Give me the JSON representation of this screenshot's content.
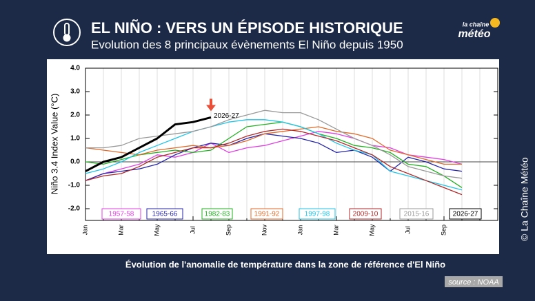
{
  "header": {
    "title": "EL NIÑO : VERS UN ÉPISODE HISTORIQUE",
    "subtitle": "Evolution des 8 principaux évènements El Niño depuis 1950",
    "logo_top": "la chaîne",
    "logo_bottom": "météo"
  },
  "chart_data": {
    "type": "line",
    "y_label": "Niño 3.4 Index Value (°C)",
    "annotation": "2026-27",
    "categories": [
      "Jan",
      null,
      "Mar",
      null,
      "May",
      null,
      "Jul",
      null,
      "Sep",
      null,
      "Nov",
      null,
      "Jan",
      null,
      "Mar",
      null,
      "May",
      null,
      "Jul",
      null,
      "Sep",
      null,
      null,
      null
    ],
    "ylim": [
      -2.5,
      4.0
    ],
    "yticks": [
      {
        "value": -2,
        "label": "-2.0"
      },
      {
        "value": -1,
        "label": "-1.0"
      },
      {
        "value": 0,
        "label": "0.0"
      },
      {
        "value": 1,
        "label": "1.0"
      },
      {
        "value": 2,
        "label": "2.0"
      },
      {
        "value": 3,
        "label": "3.0"
      },
      {
        "value": 4,
        "label": "4.0"
      }
    ],
    "series": [
      {
        "name": "1957-58",
        "color": "#e040e0",
        "values": [
          -0.8,
          -0.5,
          -0.3,
          -0.1,
          0.3,
          0.2,
          0.4,
          0.8,
          0.4,
          0.6,
          0.7,
          0.9,
          1.1,
          1.3,
          1.2,
          1.0,
          0.7,
          0.6,
          0.3,
          0.2,
          0.1,
          -0.1,
          null,
          null
        ]
      },
      {
        "name": "1965-66",
        "color": "#2424a8",
        "values": [
          -0.8,
          -0.5,
          -0.4,
          -0.3,
          -0.1,
          0.3,
          0.6,
          0.8,
          0.7,
          1.0,
          1.2,
          1.1,
          1.0,
          0.8,
          0.4,
          0.5,
          0.2,
          -0.4,
          0.2,
          0.0,
          -0.3,
          -0.4,
          null,
          null
        ]
      },
      {
        "name": "1982-83",
        "color": "#22b022",
        "values": [
          0.0,
          -0.1,
          0.1,
          0.3,
          0.4,
          0.5,
          0.4,
          0.5,
          1.0,
          1.5,
          1.6,
          1.7,
          1.5,
          1.2,
          1.0,
          0.7,
          0.6,
          0.4,
          -0.1,
          -0.2,
          -0.6,
          -1.1,
          null,
          null
        ]
      },
      {
        "name": "1991-92",
        "color": "#e06a2a",
        "values": [
          0.6,
          0.5,
          0.4,
          0.3,
          0.5,
          0.6,
          0.7,
          0.6,
          0.7,
          0.9,
          1.2,
          1.3,
          1.4,
          1.5,
          1.3,
          1.2,
          1.0,
          0.5,
          0.3,
          0.1,
          -0.1,
          -0.1,
          null,
          null
        ]
      },
      {
        "name": "1997-98",
        "color": "#22c4e6",
        "values": [
          -0.5,
          -0.3,
          0.0,
          0.4,
          0.7,
          1.0,
          1.3,
          1.5,
          1.7,
          1.8,
          1.8,
          1.7,
          1.5,
          1.2,
          0.8,
          0.5,
          0.3,
          -0.4,
          -0.6,
          -0.8,
          -1.0,
          -1.2,
          null,
          null
        ]
      },
      {
        "name": "2009-10",
        "color": "#b02a2a",
        "values": [
          -0.8,
          -0.6,
          -0.5,
          -0.2,
          0.2,
          0.4,
          0.6,
          0.6,
          0.8,
          1.1,
          1.3,
          1.4,
          1.3,
          1.1,
          0.9,
          0.6,
          0.3,
          -0.2,
          -0.5,
          -0.8,
          -1.1,
          -1.4,
          null,
          null
        ]
      },
      {
        "name": "2015-16",
        "color": "#999999",
        "values": [
          0.6,
          0.6,
          0.7,
          1.0,
          1.1,
          1.2,
          1.3,
          1.5,
          1.8,
          2.0,
          2.2,
          2.1,
          2.1,
          1.8,
          1.4,
          1.0,
          0.7,
          0.3,
          -0.2,
          -0.4,
          -0.6,
          -0.7,
          null,
          null
        ]
      },
      {
        "name": "2026-27",
        "color": "#000000",
        "values": [
          -0.4,
          0.0,
          0.2,
          0.6,
          1.0,
          1.6,
          1.7,
          1.9,
          null,
          null,
          null,
          null,
          null,
          null,
          null,
          null,
          null,
          null,
          null,
          null,
          null,
          null,
          null,
          null
        ]
      }
    ]
  },
  "footer": {
    "caption": "Évolution de l'anomalie de température dans la zone de référence d'El Niño",
    "source": "source : NOAA",
    "copyright": "©  La Chaîne Météo"
  }
}
